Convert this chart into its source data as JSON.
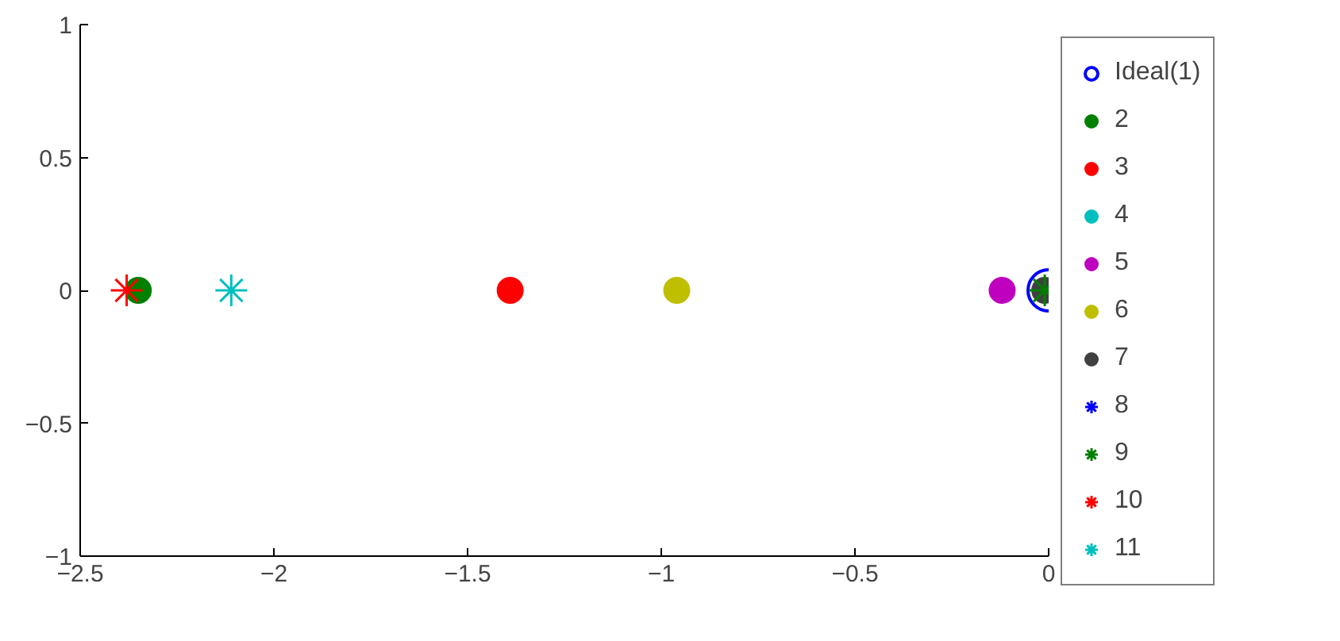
{
  "chart_data": {
    "type": "scatter",
    "xlim": [
      -2.5,
      0
    ],
    "ylim": [
      -1,
      1
    ],
    "xticks": [
      -2.5,
      -2,
      -1.5,
      -1,
      -0.5,
      0
    ],
    "yticks": [
      -1,
      -0.5,
      0,
      0.5,
      1
    ],
    "grid": false,
    "legend": "right",
    "series": [
      {
        "name": "Ideal(1)",
        "color": "#0000ff",
        "marker": "circle",
        "x": [
          0
        ],
        "values": [
          0
        ]
      },
      {
        "name": "2",
        "color": "#008000",
        "marker": "circle",
        "x": [
          -2.35
        ],
        "values": [
          0
        ]
      },
      {
        "name": "3",
        "color": "#ff0000",
        "marker": "circle",
        "x": [
          -1.39
        ],
        "values": [
          0
        ]
      },
      {
        "name": "4",
        "color": "#00bfbf",
        "marker": "circle",
        "x": [
          null
        ],
        "values": [
          null
        ]
      },
      {
        "name": "5",
        "color": "#bf00bf",
        "marker": "circle",
        "x": [
          -0.12
        ],
        "values": [
          0
        ]
      },
      {
        "name": "6",
        "color": "#bfbf00",
        "marker": "circle",
        "x": [
          -0.96
        ],
        "values": [
          0
        ]
      },
      {
        "name": "7",
        "color": "#404040",
        "marker": "circle",
        "x": [
          -0.01
        ],
        "values": [
          0
        ]
      },
      {
        "name": "8",
        "color": "#0000ff",
        "marker": "cross",
        "x": [
          null
        ],
        "values": [
          null
        ]
      },
      {
        "name": "9",
        "color": "#008000",
        "marker": "cross",
        "x": [
          -0.01
        ],
        "values": [
          0
        ]
      },
      {
        "name": "10",
        "color": "#ff0000",
        "marker": "cross",
        "x": [
          -2.38
        ],
        "values": [
          0
        ]
      },
      {
        "name": "11",
        "color": "#00bfbf",
        "marker": "cross",
        "x": [
          -2.11
        ],
        "values": [
          0
        ]
      }
    ]
  }
}
